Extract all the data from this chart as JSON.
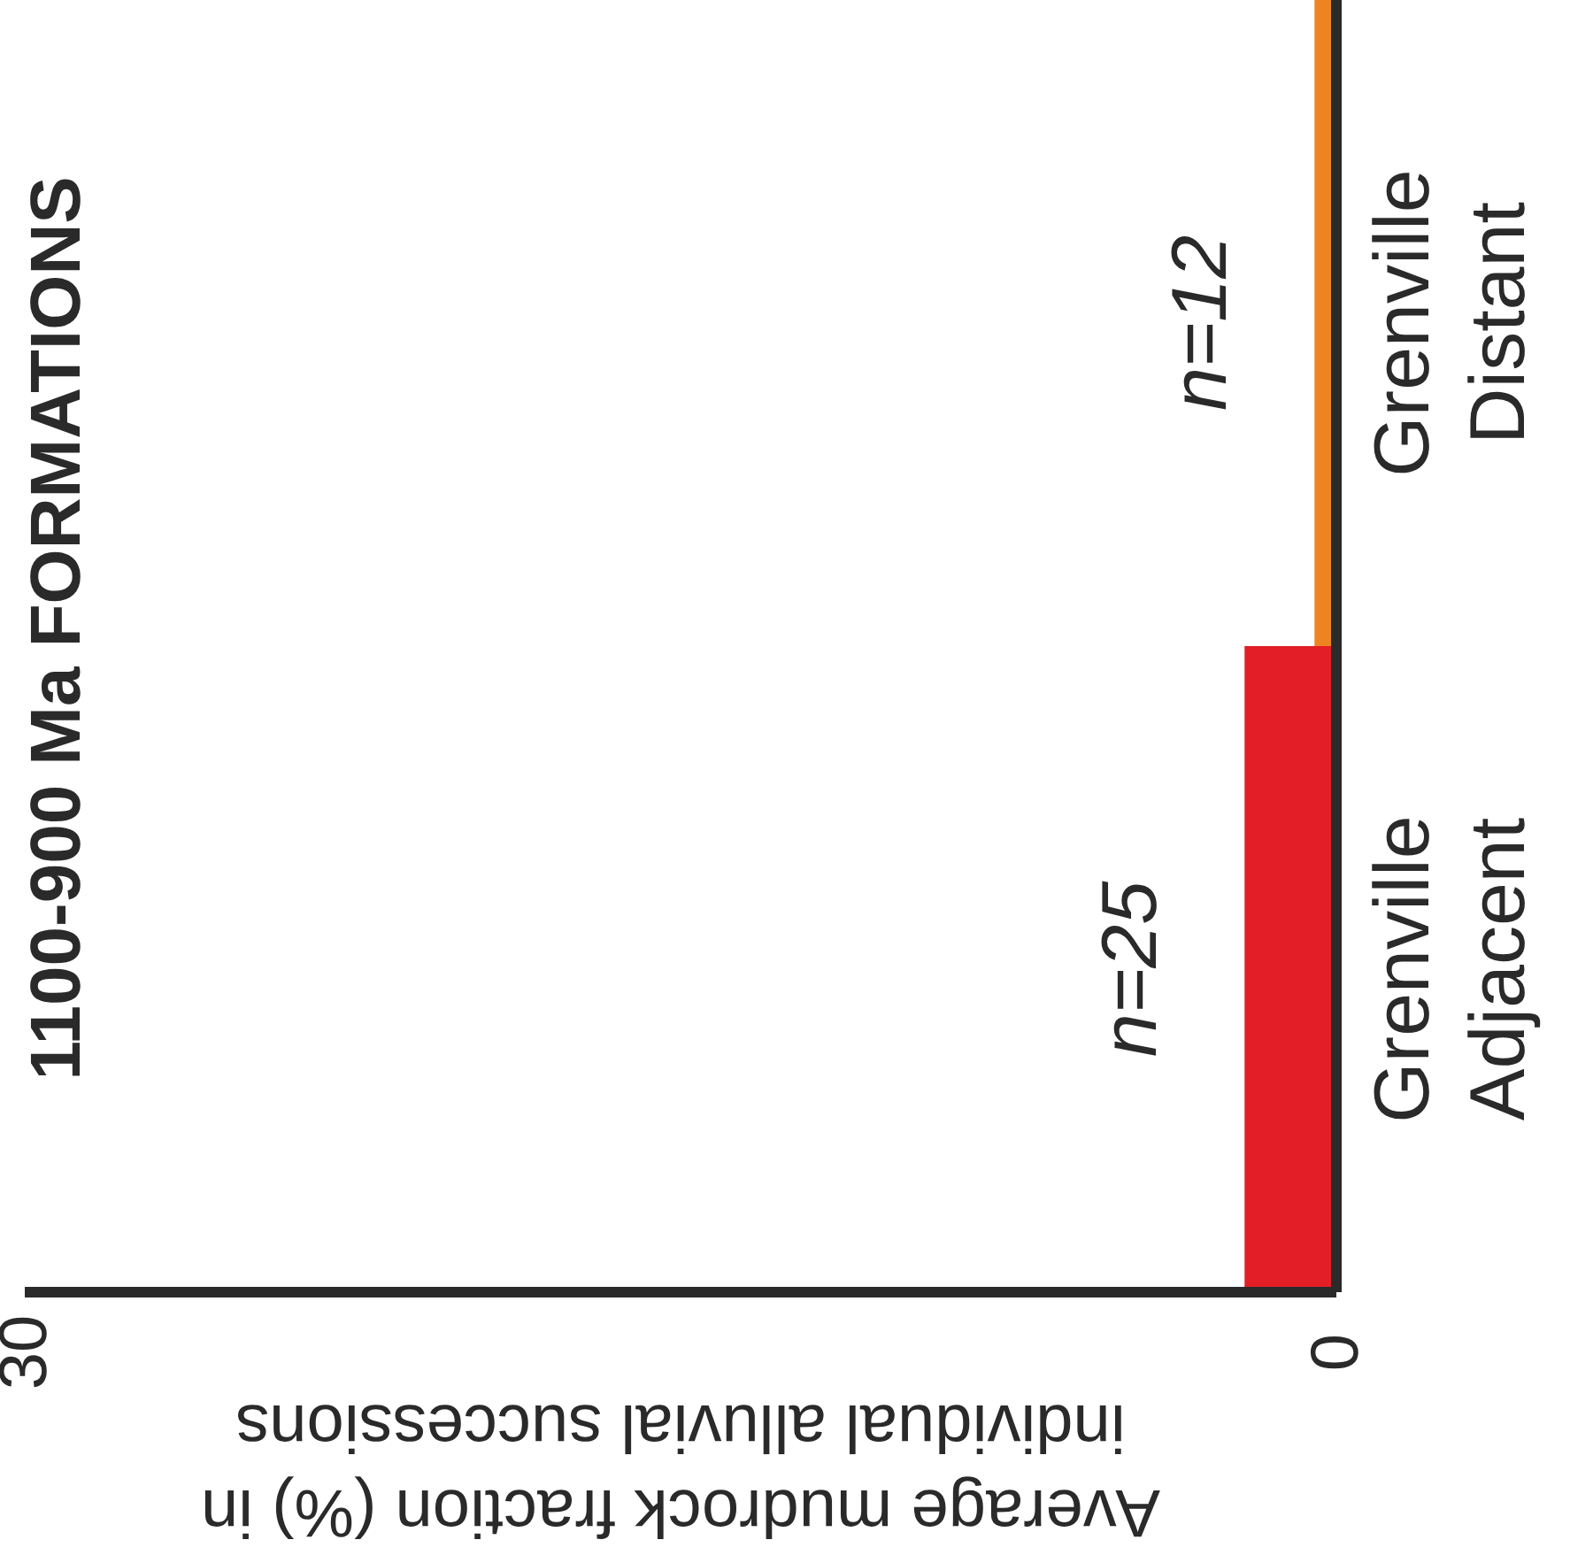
{
  "chart_data": {
    "type": "bar",
    "orientation": "horizontal",
    "title": "1100-900 Ma FORMATIONS",
    "xlabel": "Average mudrock fraction (%) in individual alluvial successions",
    "categories": [
      "Grenville Distant",
      "Grenville Adjacent"
    ],
    "values": [
      0.5,
      2.1
    ],
    "colors": [
      "#ee8322",
      "#e31e26"
    ],
    "xlim": [
      30,
      0
    ],
    "xticks": [
      30,
      0
    ],
    "grid": false,
    "annotations": [
      {
        "text": "n=12",
        "x": 0.5,
        "y": "Grenville Distant"
      },
      {
        "text": "n=25",
        "x": 2.1,
        "y": "Grenville Adjacent"
      }
    ]
  }
}
